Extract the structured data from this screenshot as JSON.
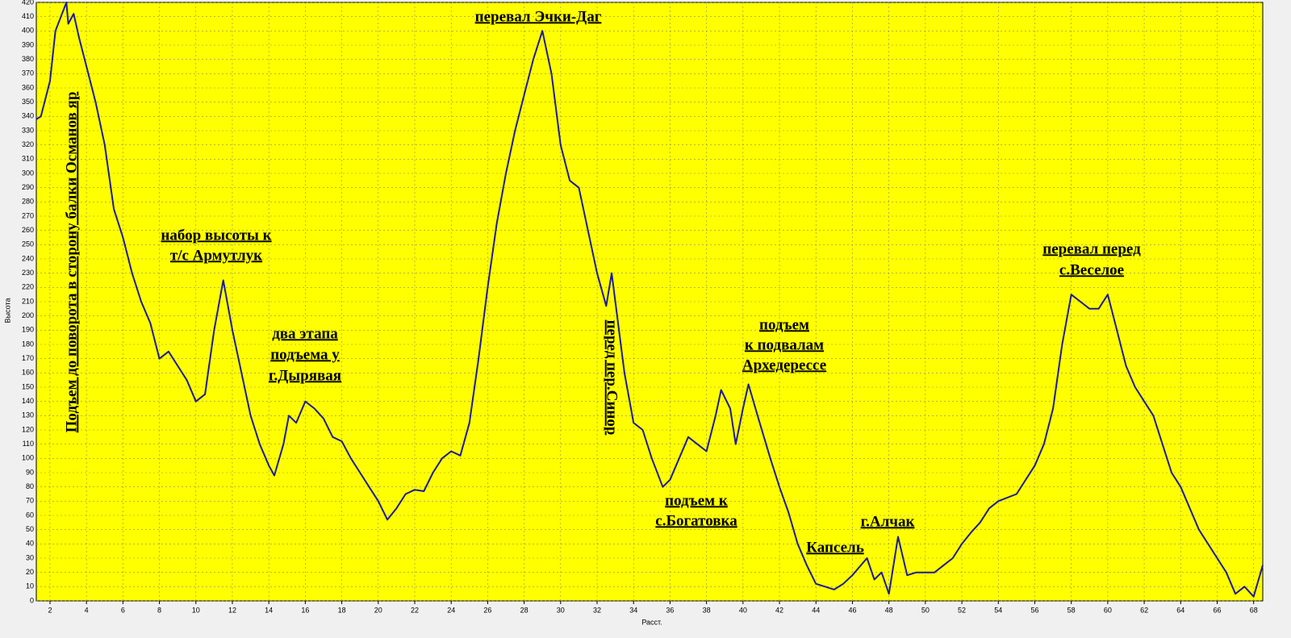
{
  "chart_data": {
    "type": "line",
    "x_label": "Расст.",
    "y_label": "Высота",
    "color": "#1c1c96",
    "grid": true,
    "xlim": [
      1.25,
      68.5
    ],
    "ylim": [
      0,
      420
    ],
    "xticks": [
      2,
      4,
      6,
      8,
      10,
      12,
      14,
      16,
      18,
      20,
      22,
      24,
      26,
      28,
      30,
      32,
      34,
      36,
      38,
      40,
      42,
      44,
      46,
      48,
      50,
      52,
      54,
      56,
      58,
      60,
      62,
      64,
      66,
      68
    ],
    "yticks": [
      0,
      10,
      20,
      30,
      40,
      50,
      60,
      70,
      80,
      90,
      100,
      110,
      120,
      130,
      140,
      150,
      160,
      170,
      180,
      190,
      200,
      210,
      220,
      230,
      240,
      250,
      260,
      270,
      280,
      290,
      300,
      310,
      320,
      330,
      340,
      350,
      360,
      370,
      380,
      390,
      400,
      410,
      420
    ],
    "x": [
      1.25,
      1.5,
      2.0,
      2.3,
      2.6,
      2.9,
      3.0,
      3.3,
      3.6,
      4.0,
      4.5,
      5.0,
      5.5,
      6.0,
      6.5,
      7.0,
      7.5,
      8.0,
      8.5,
      9.0,
      9.5,
      10.0,
      10.5,
      11.0,
      11.5,
      12.0,
      12.5,
      13.0,
      13.5,
      14.0,
      14.3,
      14.8,
      15.1,
      15.5,
      16.0,
      16.5,
      17.0,
      17.5,
      18.0,
      18.5,
      19.0,
      19.5,
      20.0,
      20.5,
      21.0,
      21.5,
      22.0,
      22.5,
      23.0,
      23.5,
      24.0,
      24.5,
      25.0,
      25.5,
      26.0,
      26.5,
      27.0,
      27.5,
      28.0,
      28.5,
      29.0,
      29.5,
      30.0,
      30.5,
      31.0,
      31.5,
      32.0,
      32.5,
      32.8,
      33.0,
      33.5,
      34.0,
      34.5,
      35.0,
      35.6,
      36.0,
      36.5,
      37.0,
      37.5,
      38.0,
      38.5,
      38.8,
      39.3,
      39.6,
      40.0,
      40.3,
      40.8,
      41.5,
      42.0,
      42.5,
      43.0,
      43.5,
      44.0,
      44.5,
      45.0,
      45.5,
      46.0,
      46.8,
      47.2,
      47.6,
      48.0,
      48.5,
      49.0,
      49.5,
      50.0,
      50.5,
      51.0,
      51.5,
      52.0,
      52.5,
      53.0,
      53.5,
      54.0,
      55.0,
      55.5,
      56.0,
      56.5,
      57.0,
      57.5,
      58.0,
      58.5,
      59.0,
      59.5,
      60.0,
      60.5,
      61.0,
      61.5,
      62.0,
      62.5,
      63.0,
      63.5,
      64.0,
      64.5,
      65.0,
      65.5,
      66.0,
      66.5,
      67.0,
      67.5,
      68.0,
      68.5
    ],
    "values": [
      338,
      340,
      365,
      400,
      410,
      420,
      405,
      412,
      395,
      375,
      350,
      320,
      275,
      255,
      230,
      210,
      195,
      170,
      175,
      165,
      155,
      140,
      145,
      190,
      225,
      190,
      160,
      130,
      110,
      95,
      88,
      110,
      130,
      125,
      140,
      135,
      128,
      115,
      112,
      100,
      90,
      80,
      70,
      57,
      65,
      75,
      78,
      77,
      90,
      100,
      105,
      102,
      125,
      170,
      220,
      265,
      300,
      330,
      355,
      380,
      400,
      370,
      320,
      295,
      290,
      260,
      230,
      207,
      230,
      210,
      160,
      125,
      120,
      100,
      80,
      85,
      100,
      115,
      110,
      105,
      130,
      148,
      135,
      110,
      135,
      152,
      130,
      100,
      80,
      62,
      40,
      25,
      12,
      10,
      8,
      12,
      18,
      30,
      15,
      20,
      5,
      45,
      18,
      20,
      20,
      20,
      25,
      30,
      40,
      48,
      55,
      65,
      70,
      75,
      85,
      95,
      110,
      135,
      180,
      215,
      210,
      205,
      205,
      215,
      190,
      165,
      150,
      140,
      130,
      110,
      90,
      80,
      65,
      50,
      40,
      30,
      20,
      5,
      10,
      3,
      25
    ],
    "annotations": [
      {
        "lines": [
          "перевал Эчки-Даг"
        ]
      },
      {
        "lines": [
          "набор высоты к",
          "т/с Армутлук"
        ]
      },
      {
        "lines": [
          "два этапа",
          "подъема у",
          "г.Дырявая"
        ]
      },
      {
        "lines": [
          "подъем",
          "к подвалам",
          "Архедерессе"
        ]
      },
      {
        "lines": [
          "подъем к",
          "с.Богатовка"
        ]
      },
      {
        "lines": [
          "Капсель"
        ]
      },
      {
        "lines": [
          "г.Алчак"
        ]
      },
      {
        "lines": [
          "перевал перед",
          "с.Веселое"
        ]
      },
      {
        "lines": [
          "Подъем до поворота в сторону балки Османов яр"
        ]
      },
      {
        "lines": [
          "перед пер.Синор"
        ]
      }
    ]
  }
}
